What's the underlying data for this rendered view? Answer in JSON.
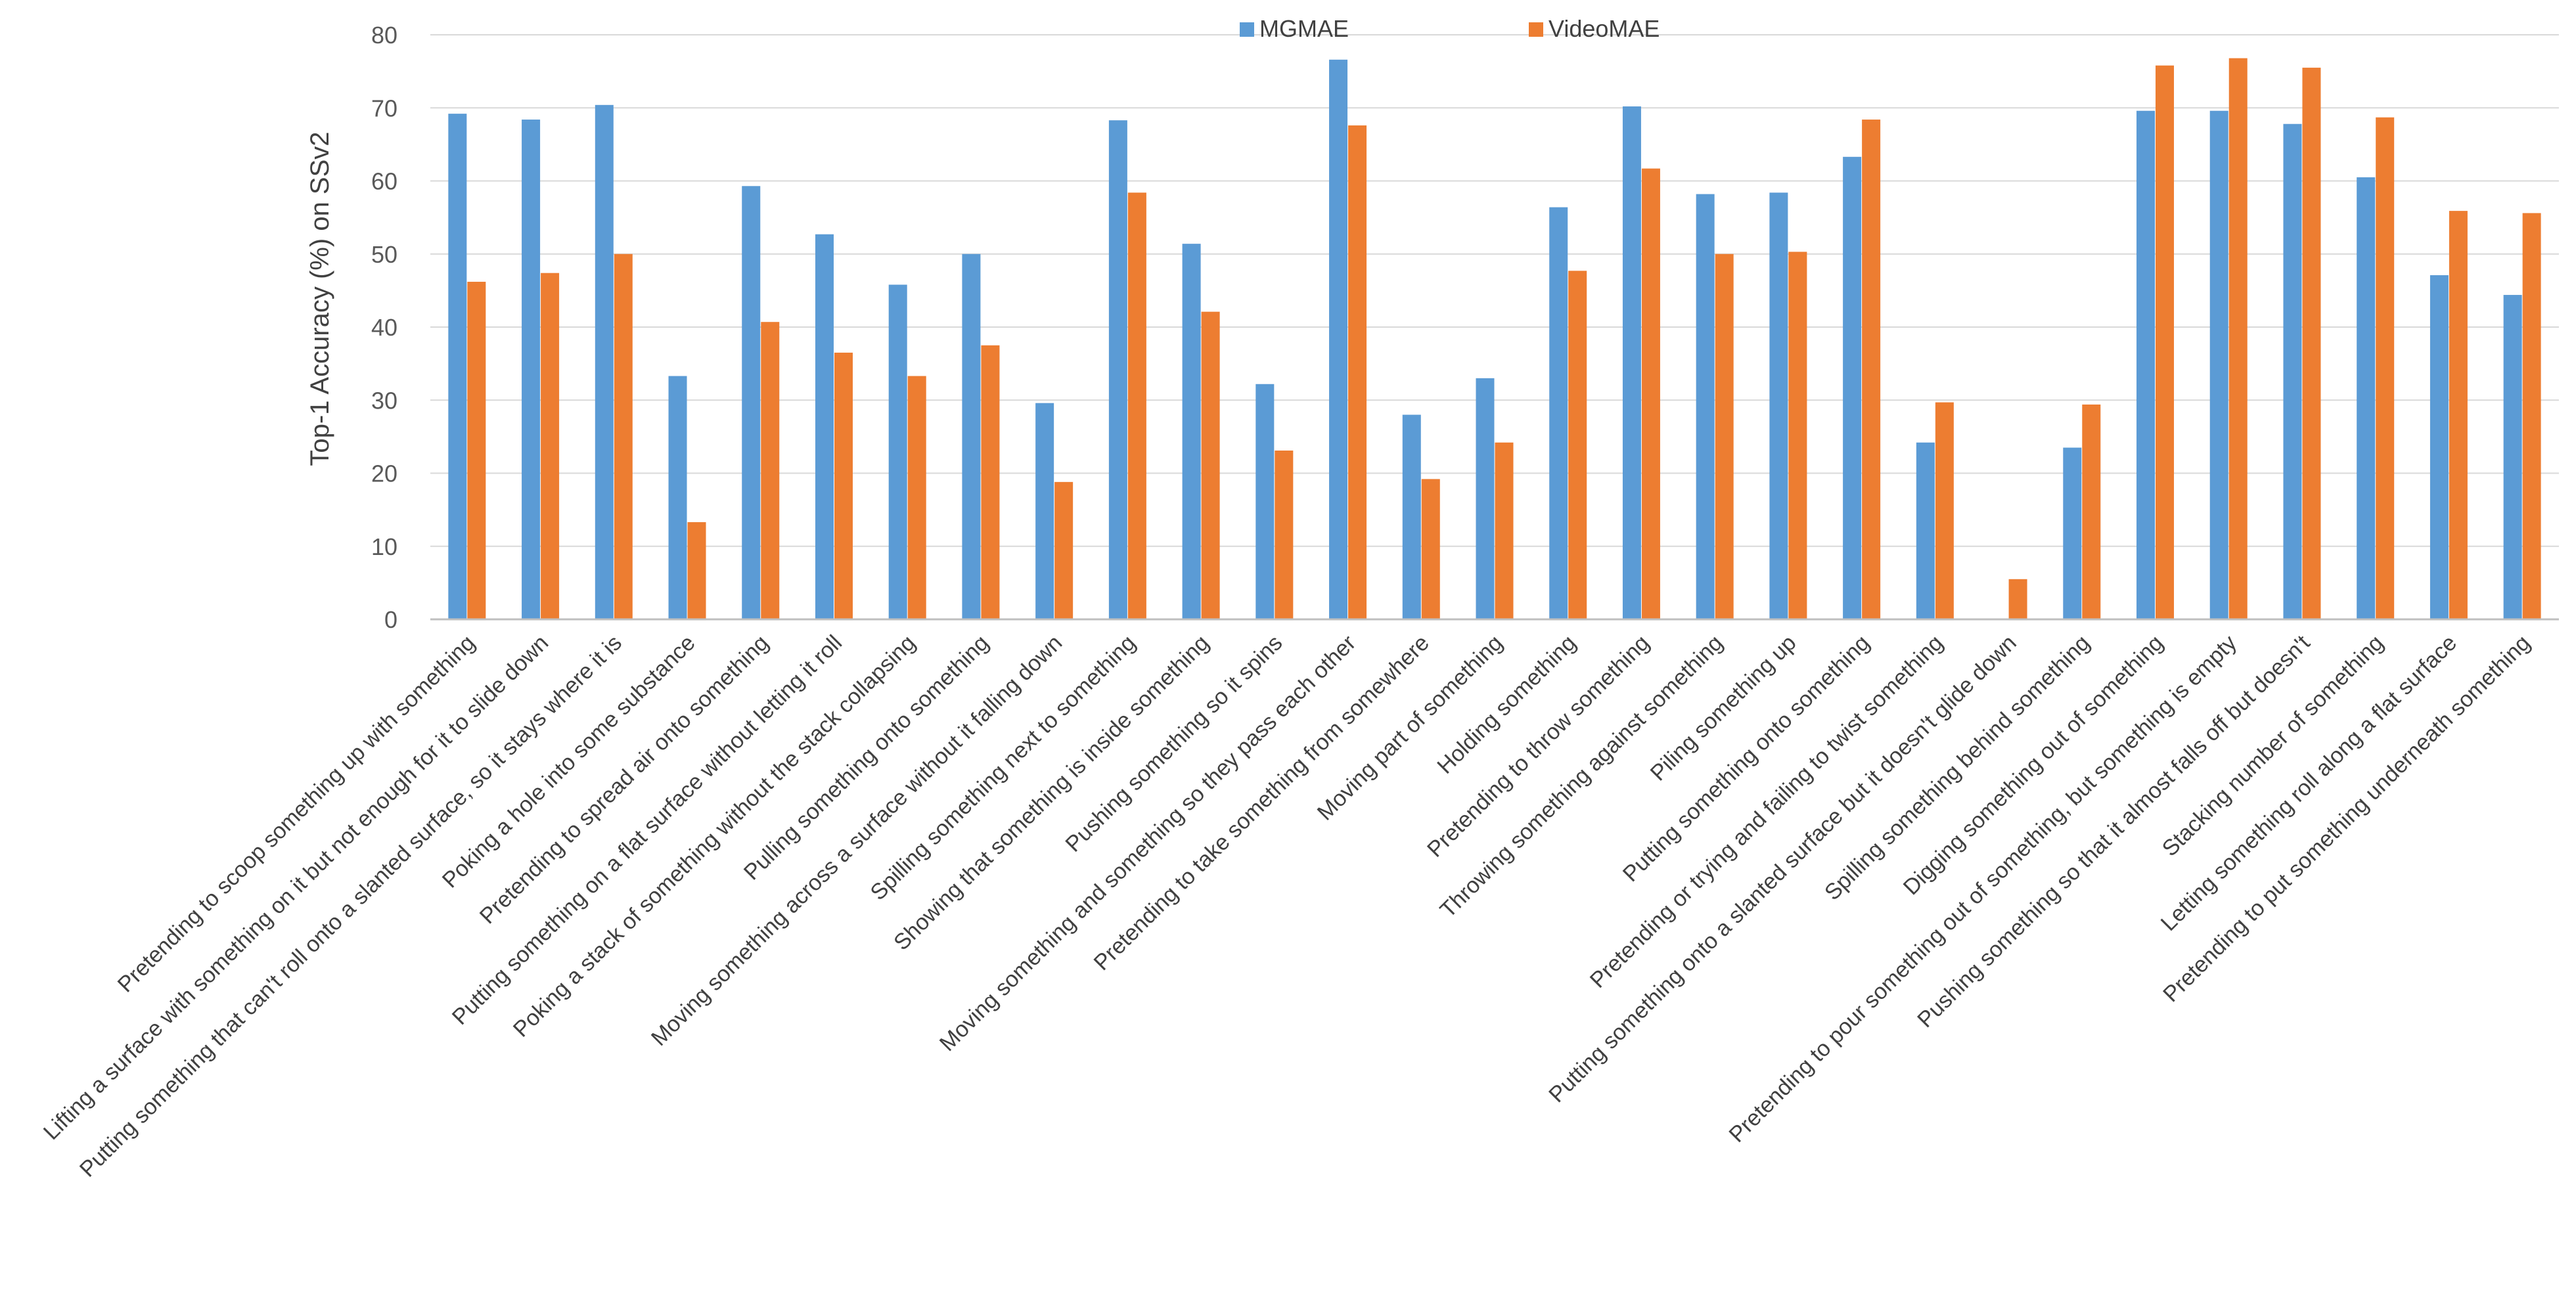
{
  "chart_data": {
    "type": "bar",
    "title": "",
    "xlabel": "",
    "ylabel": "Top-1 Accuracy (%) on SSv2",
    "ylim": [
      0,
      80
    ],
    "yticks": [
      0,
      10,
      20,
      30,
      40,
      50,
      60,
      70,
      80
    ],
    "grid": true,
    "legend_position": "top-center",
    "colors": {
      "MGMAE": "#5b9bd5",
      "VideoMAE": "#ed7d31"
    },
    "categories": [
      "Pretending to scoop something up with something",
      "Lifting a surface with something on it but not enough for it to slide down",
      "Putting something that can't roll onto a slanted surface, so it stays where it is",
      "Poking a hole into some substance",
      "Pretending to spread air onto something",
      "Putting something on a flat surface without letting it roll",
      "Poking a stack of something without the stack collapsing",
      "Pulling something onto something",
      "Moving something across a surface without it falling down",
      "Spilling something next to something",
      "Showing that something is inside something",
      "Pushing something so it spins",
      "Moving something and something so they pass each other",
      "Pretending to take something from somewhere",
      "Moving part of something",
      "Holding something",
      "Pretending to throw something",
      "Throwing something against something",
      "Piling something up",
      "Putting something onto something",
      "Pretending or trying and failing to twist something",
      "Putting something onto a slanted surface but it doesn't glide down",
      "Spilling something behind something",
      "Digging something out of something",
      "Pretending to pour something out of something, but something is empty",
      "Pushing something so that it almost falls off but doesn't",
      "Stacking number of something",
      "Letting something roll along a flat surface",
      "Pretending to put something underneath something"
    ],
    "series": [
      {
        "name": "MGMAE",
        "values": [
          69.2,
          68.4,
          70.4,
          33.3,
          59.3,
          52.7,
          45.8,
          50.0,
          29.6,
          68.3,
          51.4,
          32.2,
          76.6,
          28.0,
          33.0,
          56.4,
          70.2,
          58.2,
          58.4,
          63.3,
          24.2,
          0,
          23.5,
          69.6,
          69.6,
          67.8,
          60.5,
          47.1,
          44.4
        ]
      },
      {
        "name": "VideoMAE",
        "values": [
          46.2,
          47.4,
          50.0,
          13.3,
          40.7,
          36.5,
          33.3,
          37.5,
          18.8,
          58.4,
          42.1,
          23.1,
          67.6,
          19.2,
          24.2,
          47.7,
          61.7,
          50.0,
          50.3,
          68.4,
          29.7,
          5.5,
          29.4,
          75.8,
          76.8,
          75.5,
          68.7,
          55.9,
          55.6
        ]
      }
    ]
  }
}
